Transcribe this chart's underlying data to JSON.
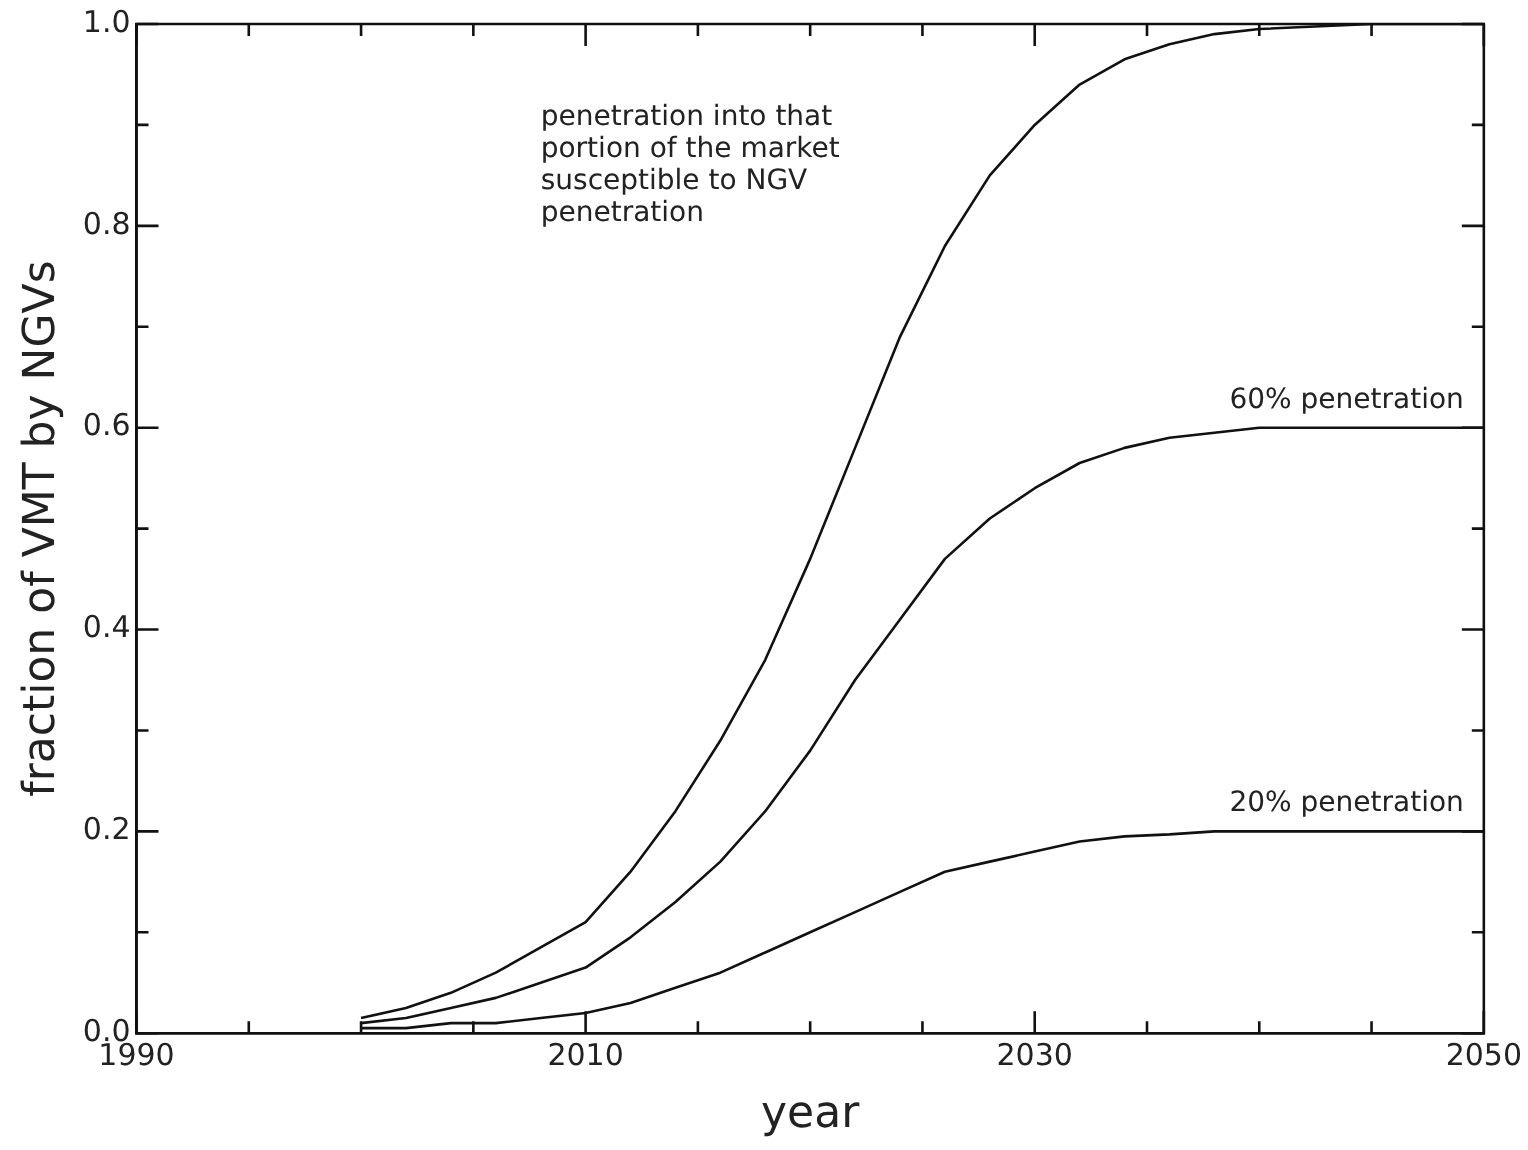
{
  "chart_data": {
    "type": "line",
    "xlabel": "year",
    "ylabel": "fraction of VMT by NGVs",
    "x": [
      2000,
      2002,
      2004,
      2006,
      2008,
      2010,
      2012,
      2014,
      2016,
      2018,
      2020,
      2022,
      2024,
      2026,
      2028,
      2030,
      2032,
      2034,
      2036,
      2038,
      2040,
      2045,
      2050
    ],
    "series": [
      {
        "color": "#111111",
        "values": [
          0.015,
          0.025,
          0.04,
          0.06,
          0.085,
          0.11,
          0.16,
          0.22,
          0.29,
          0.37,
          0.47,
          0.58,
          0.69,
          0.78,
          0.85,
          0.9,
          0.94,
          0.965,
          0.98,
          0.99,
          0.995,
          1.0,
          1.0
        ]
      },
      {
        "name": "60% penetration",
        "color": "#111111",
        "values": [
          0.01,
          0.015,
          0.025,
          0.035,
          0.05,
          0.065,
          0.095,
          0.13,
          0.17,
          0.22,
          0.28,
          0.35,
          0.41,
          0.47,
          0.51,
          0.54,
          0.565,
          0.58,
          0.59,
          0.595,
          0.6,
          0.6,
          0.6
        ]
      },
      {
        "name": "20% penetration",
        "color": "#111111",
        "values": [
          0.005,
          0.005,
          0.01,
          0.01,
          0.015,
          0.02,
          0.03,
          0.045,
          0.06,
          0.08,
          0.1,
          0.12,
          0.14,
          0.16,
          0.17,
          0.18,
          0.19,
          0.195,
          0.197,
          0.2,
          0.2,
          0.2,
          0.2
        ]
      }
    ],
    "xlim": [
      1990,
      2050
    ],
    "xticks": [
      1990,
      {
        "value": 1995,
        "label": null
      },
      {
        "value": 2000,
        "label": null
      },
      {
        "value": 2005,
        "label": null
      },
      2010,
      {
        "value": 2015,
        "label": null
      },
      {
        "value": 2020,
        "label": null
      },
      {
        "value": 2025,
        "label": null
      },
      2030,
      {
        "value": 2035,
        "label": null
      },
      {
        "value": 2040,
        "label": null
      },
      {
        "value": 2045,
        "label": null
      },
      2050
    ],
    "ylim": [
      0,
      1
    ],
    "yticks": [
      {
        "value": 0,
        "label": "0.0"
      },
      {
        "value": 0.1,
        "label": null
      },
      {
        "value": 0.2,
        "label": "0.2"
      },
      {
        "value": 0.3,
        "label": null
      },
      {
        "value": 0.4,
        "label": "0.4"
      },
      {
        "value": 0.5,
        "label": null
      },
      {
        "value": 0.6,
        "label": "0.6"
      },
      {
        "value": 0.7,
        "label": null
      },
      {
        "value": 0.8,
        "label": "0.8"
      },
      {
        "value": 0.9,
        "label": null
      },
      {
        "value": 1,
        "label": "1.0"
      }
    ],
    "annotations": [
      "penetration into that portion of the market susceptible to NGV penetration"
    ],
    "grid": false,
    "legend": false,
    "marker": "none",
    "line_style": "solid"
  }
}
